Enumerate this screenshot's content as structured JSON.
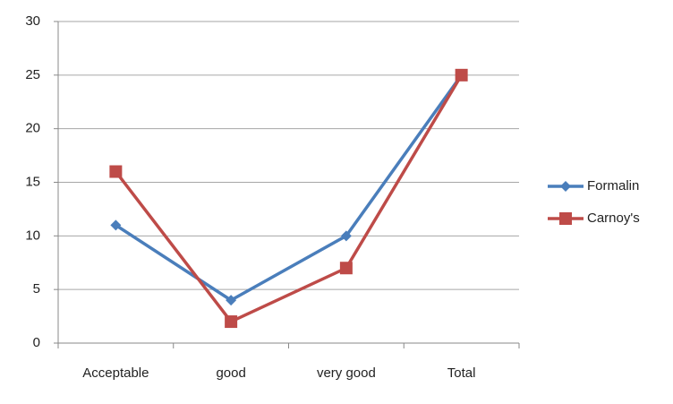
{
  "chart_data": {
    "type": "line",
    "categories": [
      "Acceptable",
      "good",
      "very good",
      "Total"
    ],
    "series": [
      {
        "name": "Formalin",
        "color": "#4a7ebb",
        "marker": "diamond",
        "values": [
          11,
          4,
          10,
          25
        ]
      },
      {
        "name": "Carnoy's",
        "color": "#be4b48",
        "marker": "square",
        "values": [
          16,
          2,
          7,
          25
        ]
      }
    ],
    "ylim": [
      0,
      30
    ],
    "yticks": [
      0,
      5,
      10,
      15,
      20,
      25,
      30
    ],
    "grid": true,
    "legend": "right"
  }
}
